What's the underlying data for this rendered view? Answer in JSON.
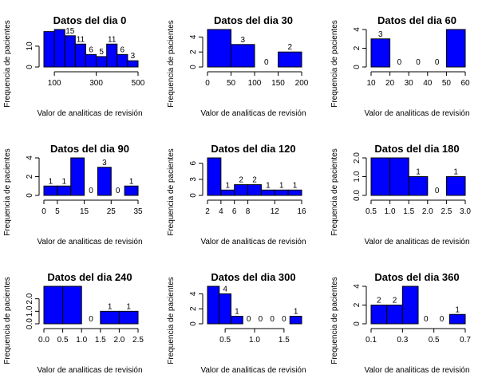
{
  "style": {
    "bar_fill": "#0000ff",
    "bar_stroke": "#000000"
  },
  "chart_data": [
    {
      "type": "bar",
      "title": "Datos del dia 0",
      "xlabel": "Valor de analiticas de revisión",
      "ylabel": "Frequencia de pacientes",
      "bins": [
        [
          50,
          100
        ],
        [
          100,
          150
        ],
        [
          150,
          200
        ],
        [
          200,
          250
        ],
        [
          250,
          300
        ],
        [
          300,
          350
        ],
        [
          350,
          400
        ],
        [
          400,
          450
        ],
        [
          450,
          500
        ]
      ],
      "values": [
        17,
        18,
        15,
        11,
        6,
        5,
        11,
        6,
        3
      ],
      "labels": [
        "",
        "",
        "15",
        "11",
        "6",
        "5",
        "11",
        "6",
        "3"
      ],
      "xlim": [
        50,
        500
      ],
      "ylim": [
        0,
        18
      ],
      "xticks": [
        100,
        300,
        500
      ],
      "yticks": [
        0,
        10
      ]
    },
    {
      "type": "bar",
      "title": "Datos del dia 30",
      "xlabel": "Valor de analiticas de revisión",
      "ylabel": "Frequencia de pacientes",
      "bins": [
        [
          0,
          50
        ],
        [
          50,
          100
        ],
        [
          100,
          150
        ],
        [
          150,
          200
        ]
      ],
      "values": [
        5,
        3,
        0,
        2
      ],
      "labels": [
        "",
        "3",
        "0",
        "2"
      ],
      "xlim": [
        0,
        200
      ],
      "ylim": [
        0,
        5
      ],
      "xticks": [
        0,
        50,
        100,
        150,
        200
      ],
      "yticks": [
        0,
        2,
        4
      ]
    },
    {
      "type": "bar",
      "title": "Datos del dia 60",
      "xlabel": "Valor de analiticas de revisión",
      "ylabel": "Frequencia de pacientes",
      "bins": [
        [
          10,
          20
        ],
        [
          20,
          30
        ],
        [
          30,
          40
        ],
        [
          40,
          50
        ],
        [
          50,
          60
        ]
      ],
      "values": [
        3,
        0,
        0,
        0,
        4
      ],
      "labels": [
        "3",
        "0",
        "0",
        "0",
        ""
      ],
      "xlim": [
        10,
        60
      ],
      "ylim": [
        0,
        4
      ],
      "xticks": [
        10,
        20,
        30,
        40,
        50,
        60
      ],
      "yticks": [
        0,
        2,
        4
      ]
    },
    {
      "type": "bar",
      "title": "Datos del dia 90",
      "xlabel": "Valor de analiticas de revisión",
      "ylabel": "Frequencia de pacientes",
      "bins": [
        [
          0,
          5
        ],
        [
          5,
          10
        ],
        [
          10,
          15
        ],
        [
          15,
          20
        ],
        [
          20,
          25
        ],
        [
          25,
          30
        ],
        [
          30,
          35
        ]
      ],
      "values": [
        1,
        1,
        4,
        0,
        3,
        0,
        1
      ],
      "labels": [
        "1",
        "1",
        "",
        "0",
        "3",
        "0",
        "1"
      ],
      "xlim": [
        0,
        35
      ],
      "ylim": [
        0,
        4
      ],
      "xticks": [
        0,
        5,
        15,
        25,
        35
      ],
      "yticks": [
        0,
        2,
        4
      ]
    },
    {
      "type": "bar",
      "title": "Datos del dia 120",
      "xlabel": "Valor de analiticas de revisión",
      "ylabel": "Frequencia de pacientes",
      "bins": [
        [
          2,
          4
        ],
        [
          4,
          6
        ],
        [
          6,
          8
        ],
        [
          8,
          10
        ],
        [
          10,
          12
        ],
        [
          12,
          14
        ],
        [
          14,
          16
        ]
      ],
      "values": [
        7,
        1,
        2,
        2,
        1,
        1,
        1
      ],
      "labels": [
        "",
        "1",
        "2",
        "2",
        "1",
        "1",
        "1"
      ],
      "xlim": [
        2,
        16
      ],
      "ylim": [
        0,
        7
      ],
      "xticks": [
        2,
        4,
        6,
        8,
        12,
        16
      ],
      "yticks": [
        0,
        3,
        6
      ]
    },
    {
      "type": "bar",
      "title": "Datos del dia 180",
      "xlabel": "Valor de analiticas de revisión",
      "ylabel": "Frequencia de pacientes",
      "bins": [
        [
          0.5,
          1.0
        ],
        [
          1.0,
          1.5
        ],
        [
          1.5,
          2.0
        ],
        [
          2.0,
          2.5
        ],
        [
          2.5,
          3.0
        ]
      ],
      "values": [
        2,
        2,
        1,
        0,
        1
      ],
      "labels": [
        "",
        "",
        "1",
        "0",
        "1"
      ],
      "xlim": [
        0.5,
        3.0
      ],
      "ylim": [
        0,
        2
      ],
      "xticks": [
        0.5,
        1.0,
        1.5,
        2.0,
        2.5,
        3.0
      ],
      "yticks": [
        0.0,
        1.0,
        2.0
      ],
      "xdec": 1,
      "ydec": 1
    },
    {
      "type": "bar",
      "title": "Datos del dia 240",
      "xlabel": "Valor de analiticas de revisión",
      "ylabel": "Frequencia de pacientes",
      "bins": [
        [
          0.0,
          0.5
        ],
        [
          0.5,
          1.0
        ],
        [
          1.0,
          1.5
        ],
        [
          1.5,
          2.0
        ],
        [
          2.0,
          2.5
        ]
      ],
      "values": [
        3,
        3,
        0,
        1,
        1
      ],
      "labels": [
        "",
        "",
        "0",
        "1",
        "1"
      ],
      "xlim": [
        0.0,
        2.5
      ],
      "ylim": [
        0,
        3
      ],
      "xticks": [
        0.0,
        0.5,
        1.0,
        1.5,
        2.0,
        2.5
      ],
      "yticks": [
        0.0,
        1.0,
        2.0
      ],
      "xdec": 1,
      "ydec": 1
    },
    {
      "type": "bar",
      "title": "Datos del dia 300",
      "xlabel": "Valor de analiticas de revisión",
      "ylabel": "Frequencia de pacientes",
      "bins": [
        [
          0.2,
          0.4
        ],
        [
          0.4,
          0.6
        ],
        [
          0.6,
          0.8
        ],
        [
          0.8,
          1.0
        ],
        [
          1.0,
          1.2
        ],
        [
          1.2,
          1.4
        ],
        [
          1.4,
          1.6
        ],
        [
          1.6,
          1.8
        ]
      ],
      "values": [
        5,
        4,
        1,
        0,
        0,
        0,
        0,
        1
      ],
      "labels": [
        "",
        "4",
        "1",
        "0",
        "0",
        "0",
        "0",
        "1"
      ],
      "xlim": [
        0.2,
        1.8
      ],
      "ylim": [
        0,
        5
      ],
      "xticks": [
        0.5,
        1.0,
        1.5
      ],
      "yticks": [
        0,
        2,
        4
      ],
      "xdec": 1
    },
    {
      "type": "bar",
      "title": "Datos del dia 360",
      "xlabel": "Valor de analiticas de revisión",
      "ylabel": "Frequencia de pacientes",
      "bins": [
        [
          0.1,
          0.2
        ],
        [
          0.2,
          0.3
        ],
        [
          0.3,
          0.4
        ],
        [
          0.4,
          0.5
        ],
        [
          0.5,
          0.6
        ],
        [
          0.6,
          0.7
        ]
      ],
      "values": [
        2,
        2,
        4,
        0,
        0,
        1
      ],
      "labels": [
        "2",
        "2",
        "",
        "0",
        "0",
        "1"
      ],
      "xlim": [
        0.1,
        0.7
      ],
      "ylim": [
        0,
        4
      ],
      "xticks": [
        0.1,
        0.3,
        0.5,
        0.7
      ],
      "yticks": [
        0,
        2,
        4
      ],
      "xdec": 1
    }
  ]
}
